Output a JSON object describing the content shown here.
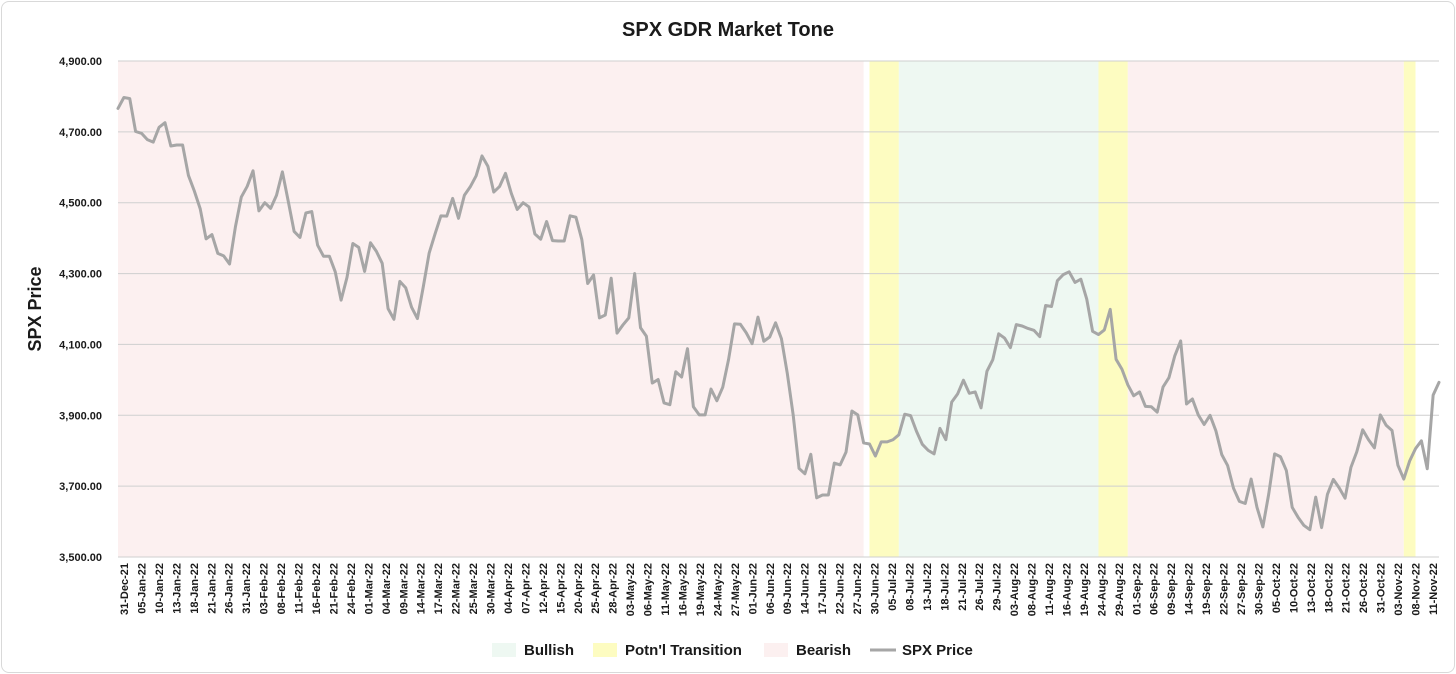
{
  "chart_data": {
    "type": "line",
    "title": "SPX GDR Market Tone",
    "ylabel": "SPX Price",
    "xlabel": "",
    "ylim": [
      3500,
      4900
    ],
    "y_ticks": [
      "3,500.00",
      "3,700.00",
      "3,900.00",
      "4,100.00",
      "4,300.00",
      "4,500.00",
      "4,700.00",
      "4,900.00"
    ],
    "y_tick_values": [
      3500,
      3700,
      3900,
      4100,
      4300,
      4500,
      4700,
      4900
    ],
    "x_tick_labels": [
      "31-Dec-21",
      "05-Jan-22",
      "10-Jan-22",
      "13-Jan-22",
      "18-Jan-22",
      "21-Jan-22",
      "26-Jan-22",
      "31-Jan-22",
      "03-Feb-22",
      "08-Feb-22",
      "11-Feb-22",
      "16-Feb-22",
      "21-Feb-22",
      "24-Feb-22",
      "01-Mar-22",
      "04-Mar-22",
      "09-Mar-22",
      "14-Mar-22",
      "17-Mar-22",
      "22-Mar-22",
      "25-Mar-22",
      "30-Mar-22",
      "04-Apr-22",
      "07-Apr-22",
      "12-Apr-22",
      "15-Apr-22",
      "20-Apr-22",
      "25-Apr-22",
      "28-Apr-22",
      "03-May-22",
      "06-May-22",
      "11-May-22",
      "16-May-22",
      "19-May-22",
      "24-May-22",
      "27-May-22",
      "01-Jun-22",
      "06-Jun-22",
      "09-Jun-22",
      "14-Jun-22",
      "17-Jun-22",
      "22-Jun-22",
      "27-Jun-22",
      "30-Jun-22",
      "05-Jul-22",
      "08-Jul-22",
      "13-Jul-22",
      "18-Jul-22",
      "21-Jul-22",
      "26-Jul-22",
      "29-Jul-22",
      "03-Aug-22",
      "08-Aug-22",
      "11-Aug-22",
      "16-Aug-22",
      "19-Aug-22",
      "24-Aug-22",
      "29-Aug-22",
      "01-Sep-22",
      "06-Sep-22",
      "09-Sep-22",
      "14-Sep-22",
      "19-Sep-22",
      "22-Sep-22",
      "27-Sep-22",
      "30-Sep-22",
      "05-Oct-22",
      "10-Oct-22",
      "13-Oct-22",
      "18-Oct-22",
      "21-Oct-22",
      "26-Oct-22",
      "31-Oct-22",
      "03-Nov-22",
      "08-Nov-22",
      "11-Nov-22"
    ],
    "series": [
      {
        "name": "SPX Price",
        "color": "#a6a6a6",
        "values": [
          4766,
          4797,
          4794,
          4701,
          4696,
          4678,
          4671,
          4713,
          4726,
          4660,
          4663,
          4663,
          4577,
          4533,
          4483,
          4398,
          4410,
          4357,
          4350,
          4327,
          4432,
          4516,
          4546,
          4590,
          4477,
          4500,
          4484,
          4521,
          4587,
          4504,
          4419,
          4402,
          4471,
          4475,
          4380,
          4349,
          4349,
          4305,
          4225,
          4289,
          4385,
          4374,
          4306,
          4387,
          4363,
          4329,
          4201,
          4171,
          4278,
          4260,
          4205,
          4173,
          4263,
          4358,
          4412,
          4463,
          4462,
          4512,
          4456,
          4521,
          4545,
          4576,
          4632,
          4603,
          4530,
          4546,
          4583,
          4526,
          4481,
          4500,
          4488,
          4412,
          4397,
          4447,
          4393,
          4392,
          4392,
          4463,
          4459,
          4396,
          4272,
          4296,
          4175,
          4183,
          4287,
          4132,
          4155,
          4175,
          4300,
          4147,
          4123,
          3991,
          4001,
          3935,
          3930,
          4023,
          4008,
          4088,
          3924,
          3901,
          3901,
          3974,
          3941,
          3979,
          4058,
          4158,
          4157,
          4133,
          4102,
          4177,
          4109,
          4121,
          4161,
          4116,
          4018,
          3901,
          3750,
          3735,
          3790,
          3667,
          3675,
          3675,
          3765,
          3760,
          3796,
          3912,
          3901,
          3822,
          3819,
          3785,
          3825,
          3825,
          3831,
          3845,
          3903,
          3899,
          3855,
          3818,
          3801,
          3791,
          3863,
          3831,
          3937,
          3960,
          3999,
          3962,
          3966,
          3921,
          4024,
          4057,
          4130,
          4118,
          4091,
          4156,
          4152,
          4145,
          4140,
          4122,
          4210,
          4207,
          4280,
          4297,
          4305,
          4275,
          4284,
          4228,
          4137,
          4128,
          4141,
          4199,
          4058,
          4030,
          3986,
          3955,
          3966,
          3925,
          3924,
          3909,
          3980,
          4006,
          4068,
          4110,
          3932,
          3946,
          3901,
          3874,
          3900,
          3856,
          3789,
          3758,
          3694,
          3657,
          3651,
          3720,
          3640,
          3585,
          3678,
          3791,
          3783,
          3744,
          3640,
          3612,
          3589,
          3577,
          3669,
          3583,
          3677,
          3719,
          3695,
          3666,
          3753,
          3797,
          3859,
          3831,
          3808,
          3901,
          3872,
          3857,
          3759,
          3720,
          3771,
          3806,
          3828,
          3749,
          3957,
          3993
        ]
      }
    ],
    "tone_regions": [
      {
        "tone": "Bearish",
        "from_index": 0,
        "to_index": 127
      },
      {
        "tone": "Potn'l Transition",
        "from_index": 128,
        "to_index": 133
      },
      {
        "tone": "Bullish",
        "from_index": 133,
        "to_index": 167
      },
      {
        "tone": "Potn'l Transition",
        "from_index": 167,
        "to_index": 172
      },
      {
        "tone": "Bearish",
        "from_index": 172,
        "to_index": 219
      },
      {
        "tone": "Potn'l Transition",
        "from_index": 219,
        "to_index": 221
      }
    ],
    "tone_colors": {
      "Bullish": "#eef8f2",
      "Potn'l Transition": "#fdfcc1",
      "Bearish": "#fcf0f0"
    },
    "legend": {
      "position": "bottom",
      "entries": [
        "Bullish",
        "Potn'l Transition",
        "Bearish",
        "SPX Price"
      ]
    },
    "grid": true
  }
}
